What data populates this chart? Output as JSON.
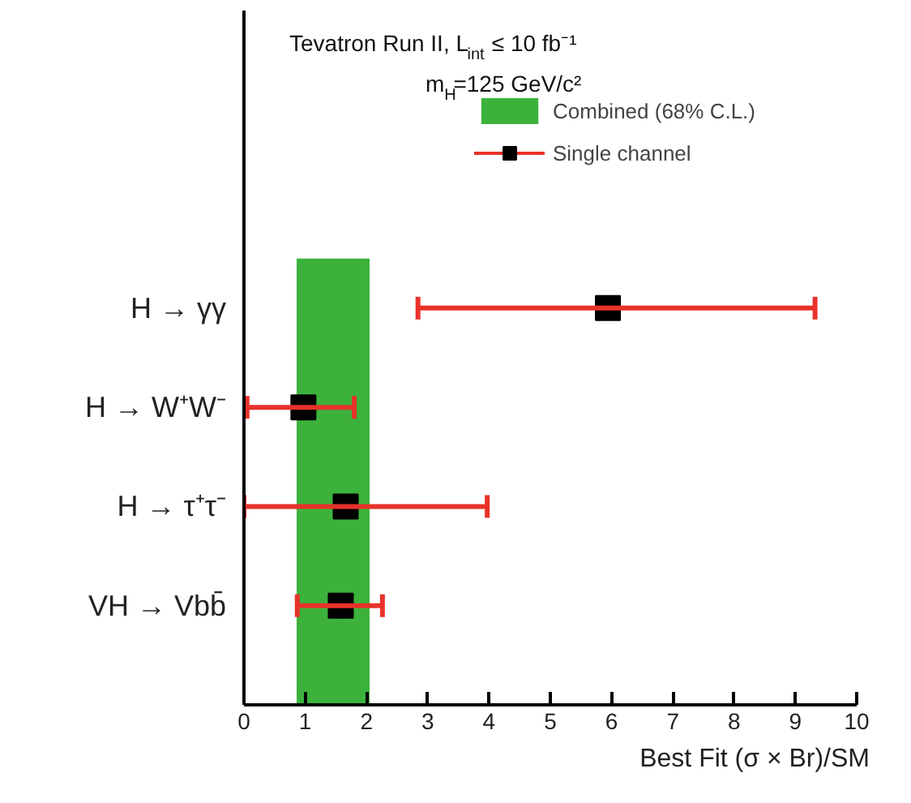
{
  "chart_data": {
    "type": "scatter",
    "orientation": "horizontal",
    "categories": [
      "H → γγ",
      "H → W⁺W⁻",
      "H → τ⁺τ⁻",
      "VH → Vbb̄"
    ],
    "series": [
      {
        "name": "Single channel",
        "color": "#000000",
        "values": [
          5.94,
          0.97,
          1.66,
          1.58
        ],
        "errors": [
          [
            2.84,
            9.32
          ],
          [
            0.05,
            1.8
          ],
          [
            0.0,
            3.97
          ],
          [
            0.87,
            2.26
          ]
        ]
      }
    ],
    "bands": [
      {
        "axis": "x",
        "from": 0.86,
        "to": 2.05,
        "label": "Combined (68% C.L.)",
        "color": "#3cb23c"
      }
    ],
    "annotations": [
      "Tevatron Run II, L$_{int}$ ≤ 10 fb⁻¹",
      "m$_{H}$=125 GeV/c²"
    ],
    "xlabel": "Best Fit (σ × Br)/SM",
    "xlim": [
      0,
      10
    ],
    "xticks": [
      0,
      1,
      2,
      3,
      4,
      5,
      6,
      7,
      8,
      9,
      10
    ],
    "marker": "square",
    "grid": false,
    "legend": "top right"
  }
}
